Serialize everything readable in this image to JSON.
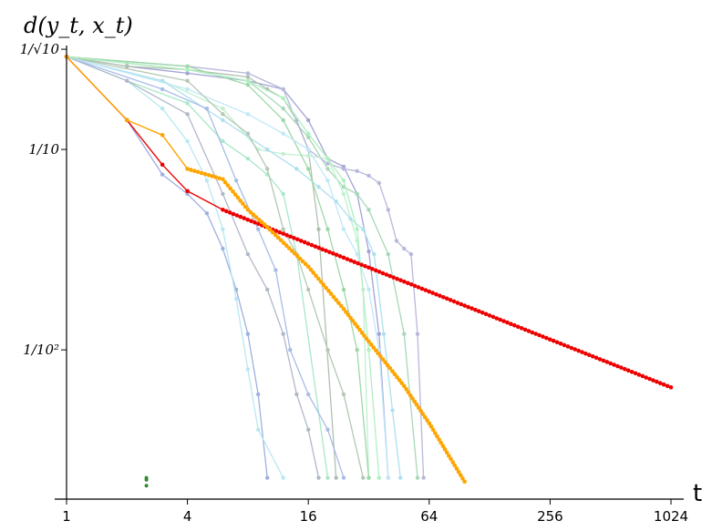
{
  "chart_data": {
    "type": "line",
    "title": "",
    "ylabel": "d(y_t, x_t)",
    "xlabel": "t",
    "x_scale": "log2",
    "y_scale": "log10",
    "xlim": [
      1,
      1024
    ],
    "ylim": [
      0.0018,
      0.33
    ],
    "x_ticks": [
      1,
      4,
      16,
      64,
      256,
      1024
    ],
    "x_tick_labels": [
      "1",
      "4",
      "16",
      "64",
      "256",
      "1024"
    ],
    "y_ticks": [
      0.3162,
      0.1,
      0.01
    ],
    "y_tick_labels": [
      "1/√10",
      "1/10",
      "1/10²"
    ],
    "grid": false,
    "legend": "none",
    "series": [
      {
        "color": "#ee0000",
        "role": "highlight-red",
        "x": [
          1,
          2,
          3,
          4,
          6,
          1024
        ],
        "y": [
          0.29,
          0.14,
          0.084,
          0.062,
          0.05,
          0.0065
        ]
      },
      {
        "color": "#ffa500",
        "role": "highlight-orange",
        "x": [
          1,
          2,
          3,
          4,
          6,
          8,
          10,
          16,
          24,
          32,
          48,
          64,
          96
        ],
        "y": [
          0.29,
          0.14,
          0.118,
          0.08,
          0.071,
          0.05,
          0.041,
          0.026,
          0.016,
          0.011,
          0.0066,
          0.0043,
          0.0022
        ]
      },
      {
        "color": "#2e8b2e",
        "role": "marker-cluster",
        "x": [
          2.5,
          2.5,
          2.5
        ],
        "y": [
          0.00225,
          0.0021,
          0.0023
        ]
      },
      {
        "color": "#a3a3d6",
        "x": [
          1,
          2,
          4,
          8,
          12,
          16,
          20,
          24,
          28,
          32,
          36,
          40
        ],
        "y": [
          0.29,
          0.26,
          0.24,
          0.22,
          0.2,
          0.14,
          0.09,
          0.082,
          0.06,
          0.031,
          0.012,
          0.0023
        ]
      },
      {
        "color": "#b0c0b0",
        "x": [
          1,
          2,
          4,
          8,
          10,
          12,
          14,
          16,
          18,
          22
        ],
        "y": [
          0.29,
          0.26,
          0.25,
          0.23,
          0.2,
          0.18,
          0.14,
          0.1,
          0.04,
          0.0023
        ]
      },
      {
        "color": "#a8e8c8",
        "x": [
          1,
          2,
          4,
          6,
          8,
          10,
          12,
          14,
          20
        ],
        "y": [
          0.29,
          0.22,
          0.17,
          0.11,
          0.09,
          0.075,
          0.06,
          0.03,
          0.0023
        ]
      },
      {
        "color": "#9fb0e0",
        "x": [
          1,
          2,
          3,
          4,
          5,
          6,
          7,
          8,
          9,
          10
        ],
        "y": [
          0.29,
          0.14,
          0.075,
          0.06,
          0.048,
          0.032,
          0.02,
          0.012,
          0.006,
          0.0023
        ]
      },
      {
        "color": "#b8e8f0",
        "x": [
          1,
          2,
          3,
          4,
          5,
          6,
          7,
          8,
          9,
          12
        ],
        "y": [
          0.29,
          0.22,
          0.16,
          0.11,
          0.07,
          0.04,
          0.018,
          0.008,
          0.004,
          0.0023
        ]
      },
      {
        "color": "#a8d8b8",
        "x": [
          1,
          2,
          4,
          8,
          12,
          16,
          20,
          24,
          28,
          32,
          40,
          48,
          56
        ],
        "y": [
          0.29,
          0.27,
          0.25,
          0.22,
          0.16,
          0.115,
          0.08,
          0.065,
          0.06,
          0.05,
          0.03,
          0.012,
          0.0023
        ]
      },
      {
        "color": "#b8b8dc",
        "x": [
          1,
          4,
          8,
          12,
          16,
          20,
          24,
          28,
          32,
          36,
          40,
          44,
          48,
          52,
          56,
          60
        ],
        "y": [
          0.29,
          0.26,
          0.24,
          0.2,
          0.1,
          0.085,
          0.08,
          0.078,
          0.074,
          0.068,
          0.05,
          0.035,
          0.032,
          0.03,
          0.012,
          0.0023
        ]
      },
      {
        "color": "#c0f0d0",
        "x": [
          1,
          3,
          6,
          9,
          12,
          16,
          20,
          24,
          28,
          30,
          32
        ],
        "y": [
          0.29,
          0.22,
          0.16,
          0.1,
          0.095,
          0.093,
          0.09,
          0.06,
          0.035,
          0.02,
          0.0023
        ]
      },
      {
        "color": "#aee0ee",
        "x": [
          1,
          3,
          6,
          10,
          14,
          18,
          22,
          26,
          30,
          34,
          38,
          42,
          46
        ],
        "y": [
          0.29,
          0.22,
          0.14,
          0.1,
          0.08,
          0.065,
          0.055,
          0.045,
          0.04,
          0.03,
          0.012,
          0.005,
          0.0023
        ]
      },
      {
        "color": "#b0b8c8",
        "x": [
          1,
          2,
          4,
          6,
          8,
          10,
          12,
          14,
          16,
          18
        ],
        "y": [
          0.29,
          0.22,
          0.15,
          0.06,
          0.03,
          0.02,
          0.012,
          0.006,
          0.004,
          0.0023
        ]
      },
      {
        "color": "#9ed8a8",
        "x": [
          1,
          4,
          8,
          12,
          16,
          20,
          24,
          28,
          32
        ],
        "y": [
          0.29,
          0.26,
          0.21,
          0.14,
          0.08,
          0.04,
          0.02,
          0.01,
          0.0023
        ]
      },
      {
        "color": "#a8bce8",
        "x": [
          1,
          3,
          5,
          7,
          9,
          11,
          13,
          16,
          20,
          24
        ],
        "y": [
          0.29,
          0.2,
          0.16,
          0.07,
          0.04,
          0.025,
          0.01,
          0.006,
          0.004,
          0.0023
        ]
      },
      {
        "color": "#c0e8f8",
        "x": [
          1,
          4,
          8,
          12,
          16,
          20,
          24,
          28,
          32,
          36,
          40
        ],
        "y": [
          0.29,
          0.2,
          0.15,
          0.12,
          0.1,
          0.07,
          0.04,
          0.03,
          0.02,
          0.01,
          0.0023
        ]
      },
      {
        "color": "#b4c8b4",
        "x": [
          1,
          4,
          6,
          8,
          10,
          12,
          14,
          16,
          20,
          24,
          30
        ],
        "y": [
          0.29,
          0.22,
          0.15,
          0.12,
          0.08,
          0.04,
          0.03,
          0.02,
          0.01,
          0.006,
          0.0023
        ]
      },
      {
        "color": "#b0f0c0",
        "x": [
          1,
          4,
          8,
          12,
          16,
          20,
          24,
          28,
          32,
          36
        ],
        "y": [
          0.29,
          0.25,
          0.22,
          0.18,
          0.12,
          0.09,
          0.07,
          0.04,
          0.01,
          0.0023
        ]
      }
    ]
  }
}
